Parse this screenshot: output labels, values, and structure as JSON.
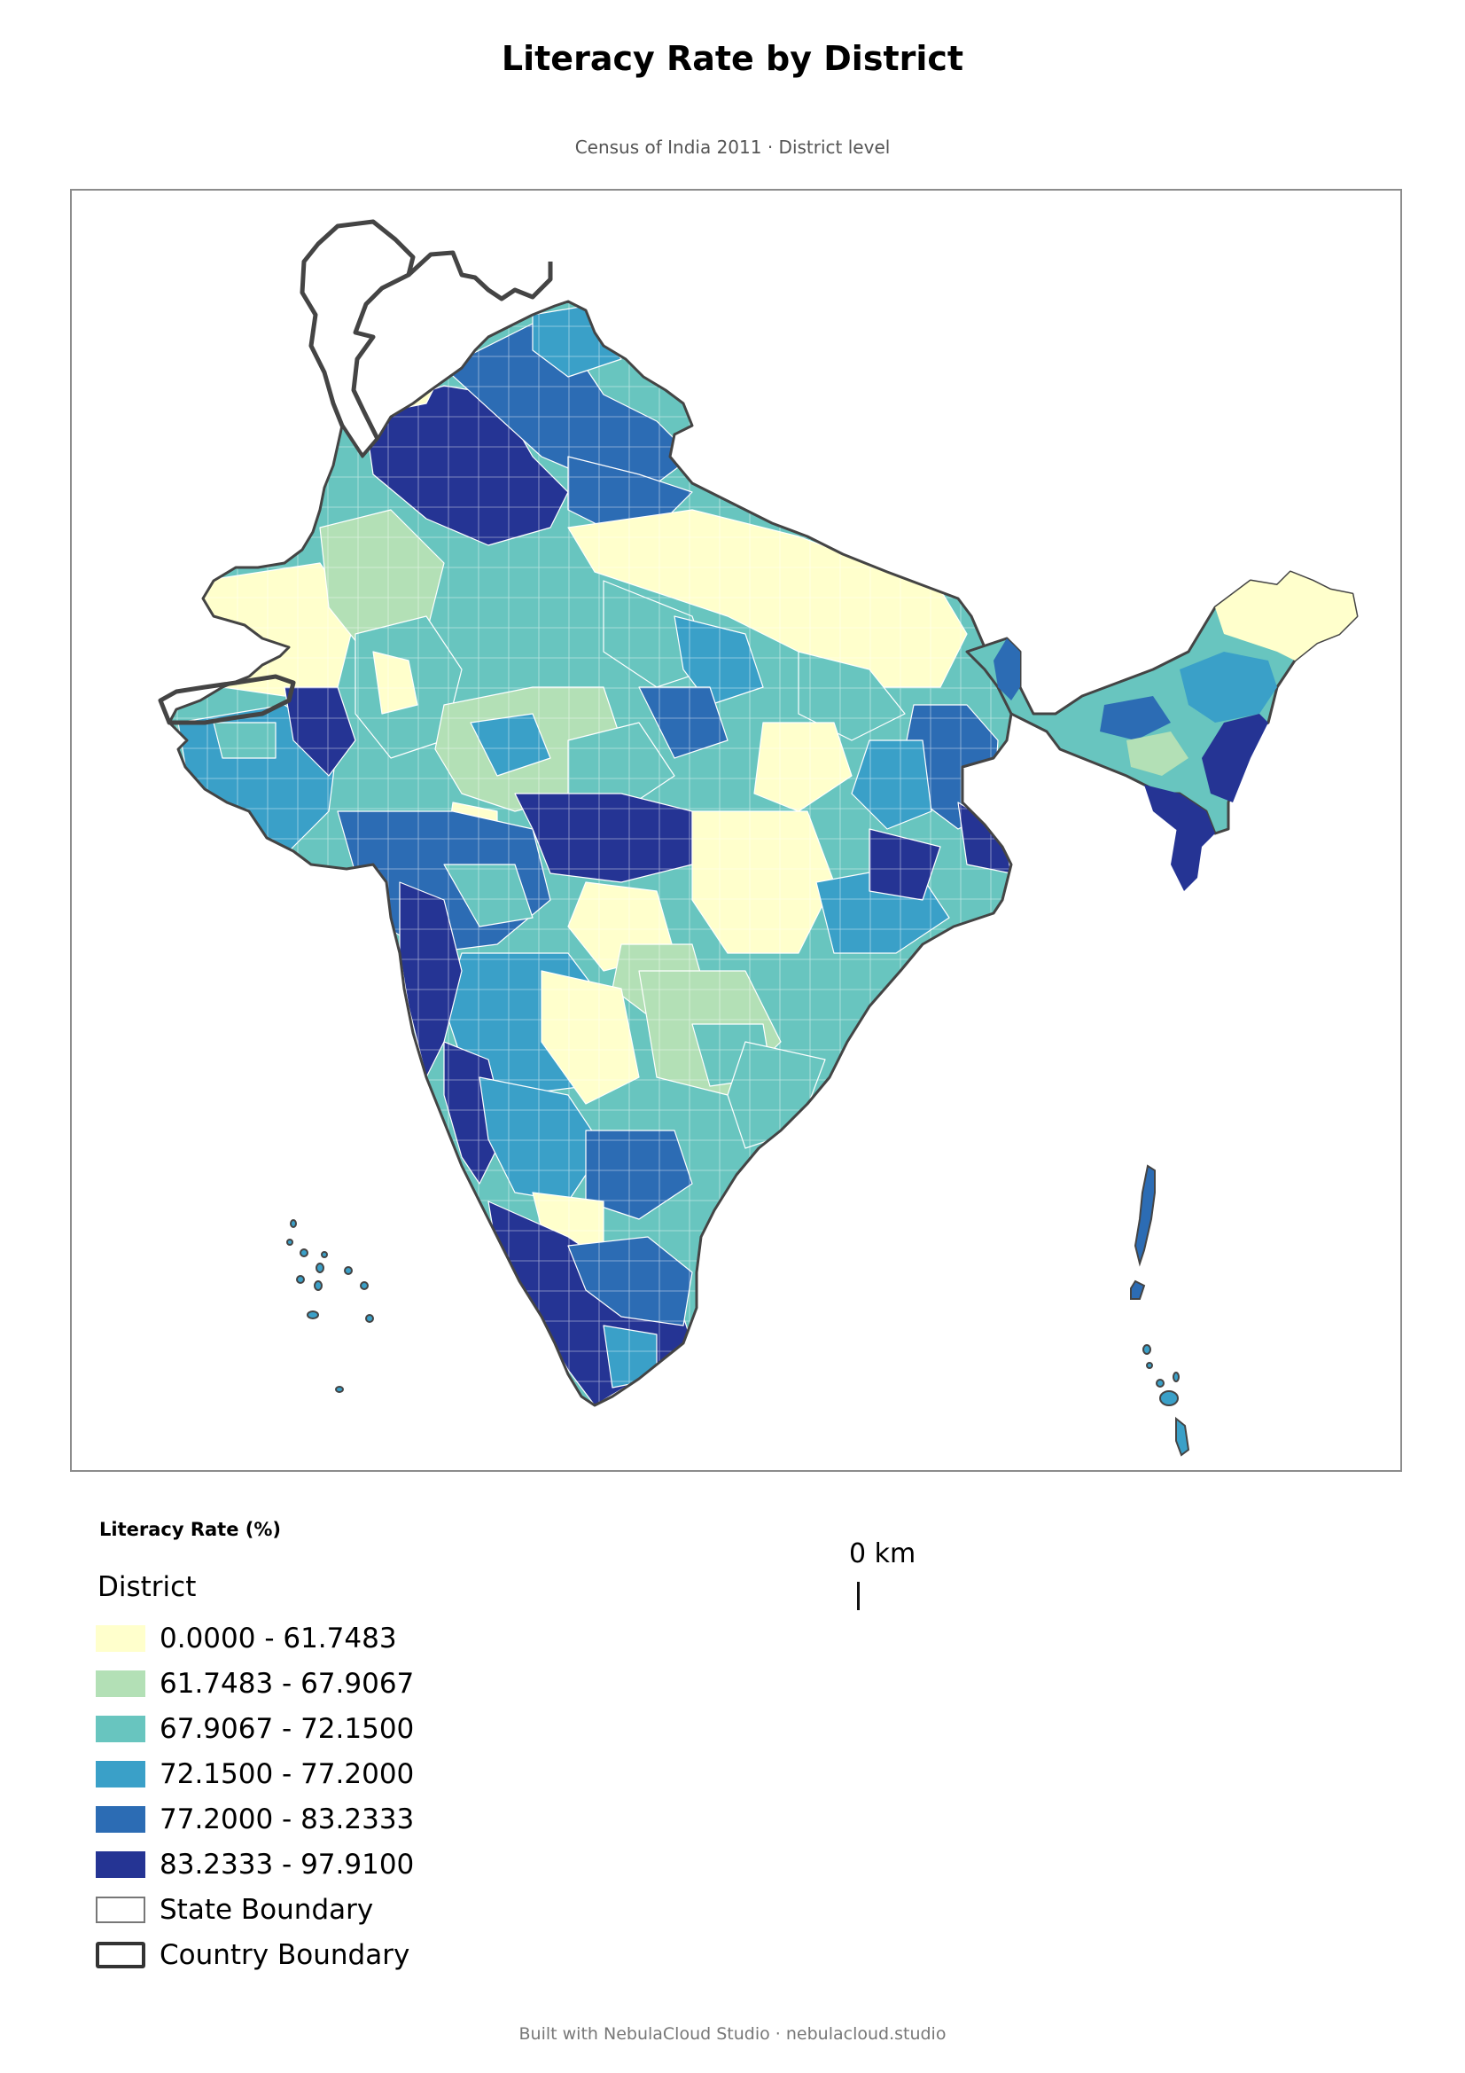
{
  "header": {
    "title": "Literacy Rate by District",
    "subtitle": "Census of India 2011 · District level"
  },
  "legend": {
    "heading": "Literacy Rate (%)",
    "layer_name": "District",
    "classes": [
      {
        "label": "0.0000 - 61.7483",
        "color": "#ffffcc"
      },
      {
        "label": "61.7483 - 67.9067",
        "color": "#b3e0b6"
      },
      {
        "label": "67.9067 - 72.1500",
        "color": "#68c5bf"
      },
      {
        "label": "72.1500 - 77.2000",
        "color": "#3aa0c8"
      },
      {
        "label": "77.2000 - 83.2333",
        "color": "#2c6cb4"
      },
      {
        "label": "83.2333 - 97.9100",
        "color": "#253494"
      }
    ],
    "state_boundary_label": "State Boundary",
    "country_boundary_label": "Country Boundary"
  },
  "scalebar": {
    "label": "0 km"
  },
  "footer": {
    "credit": "Built with NebulaCloud Studio · nebulacloud.studio"
  },
  "colors": {
    "country_outline": "#444444",
    "district_border": "#ffffff",
    "frame": "#8c8c8c"
  }
}
